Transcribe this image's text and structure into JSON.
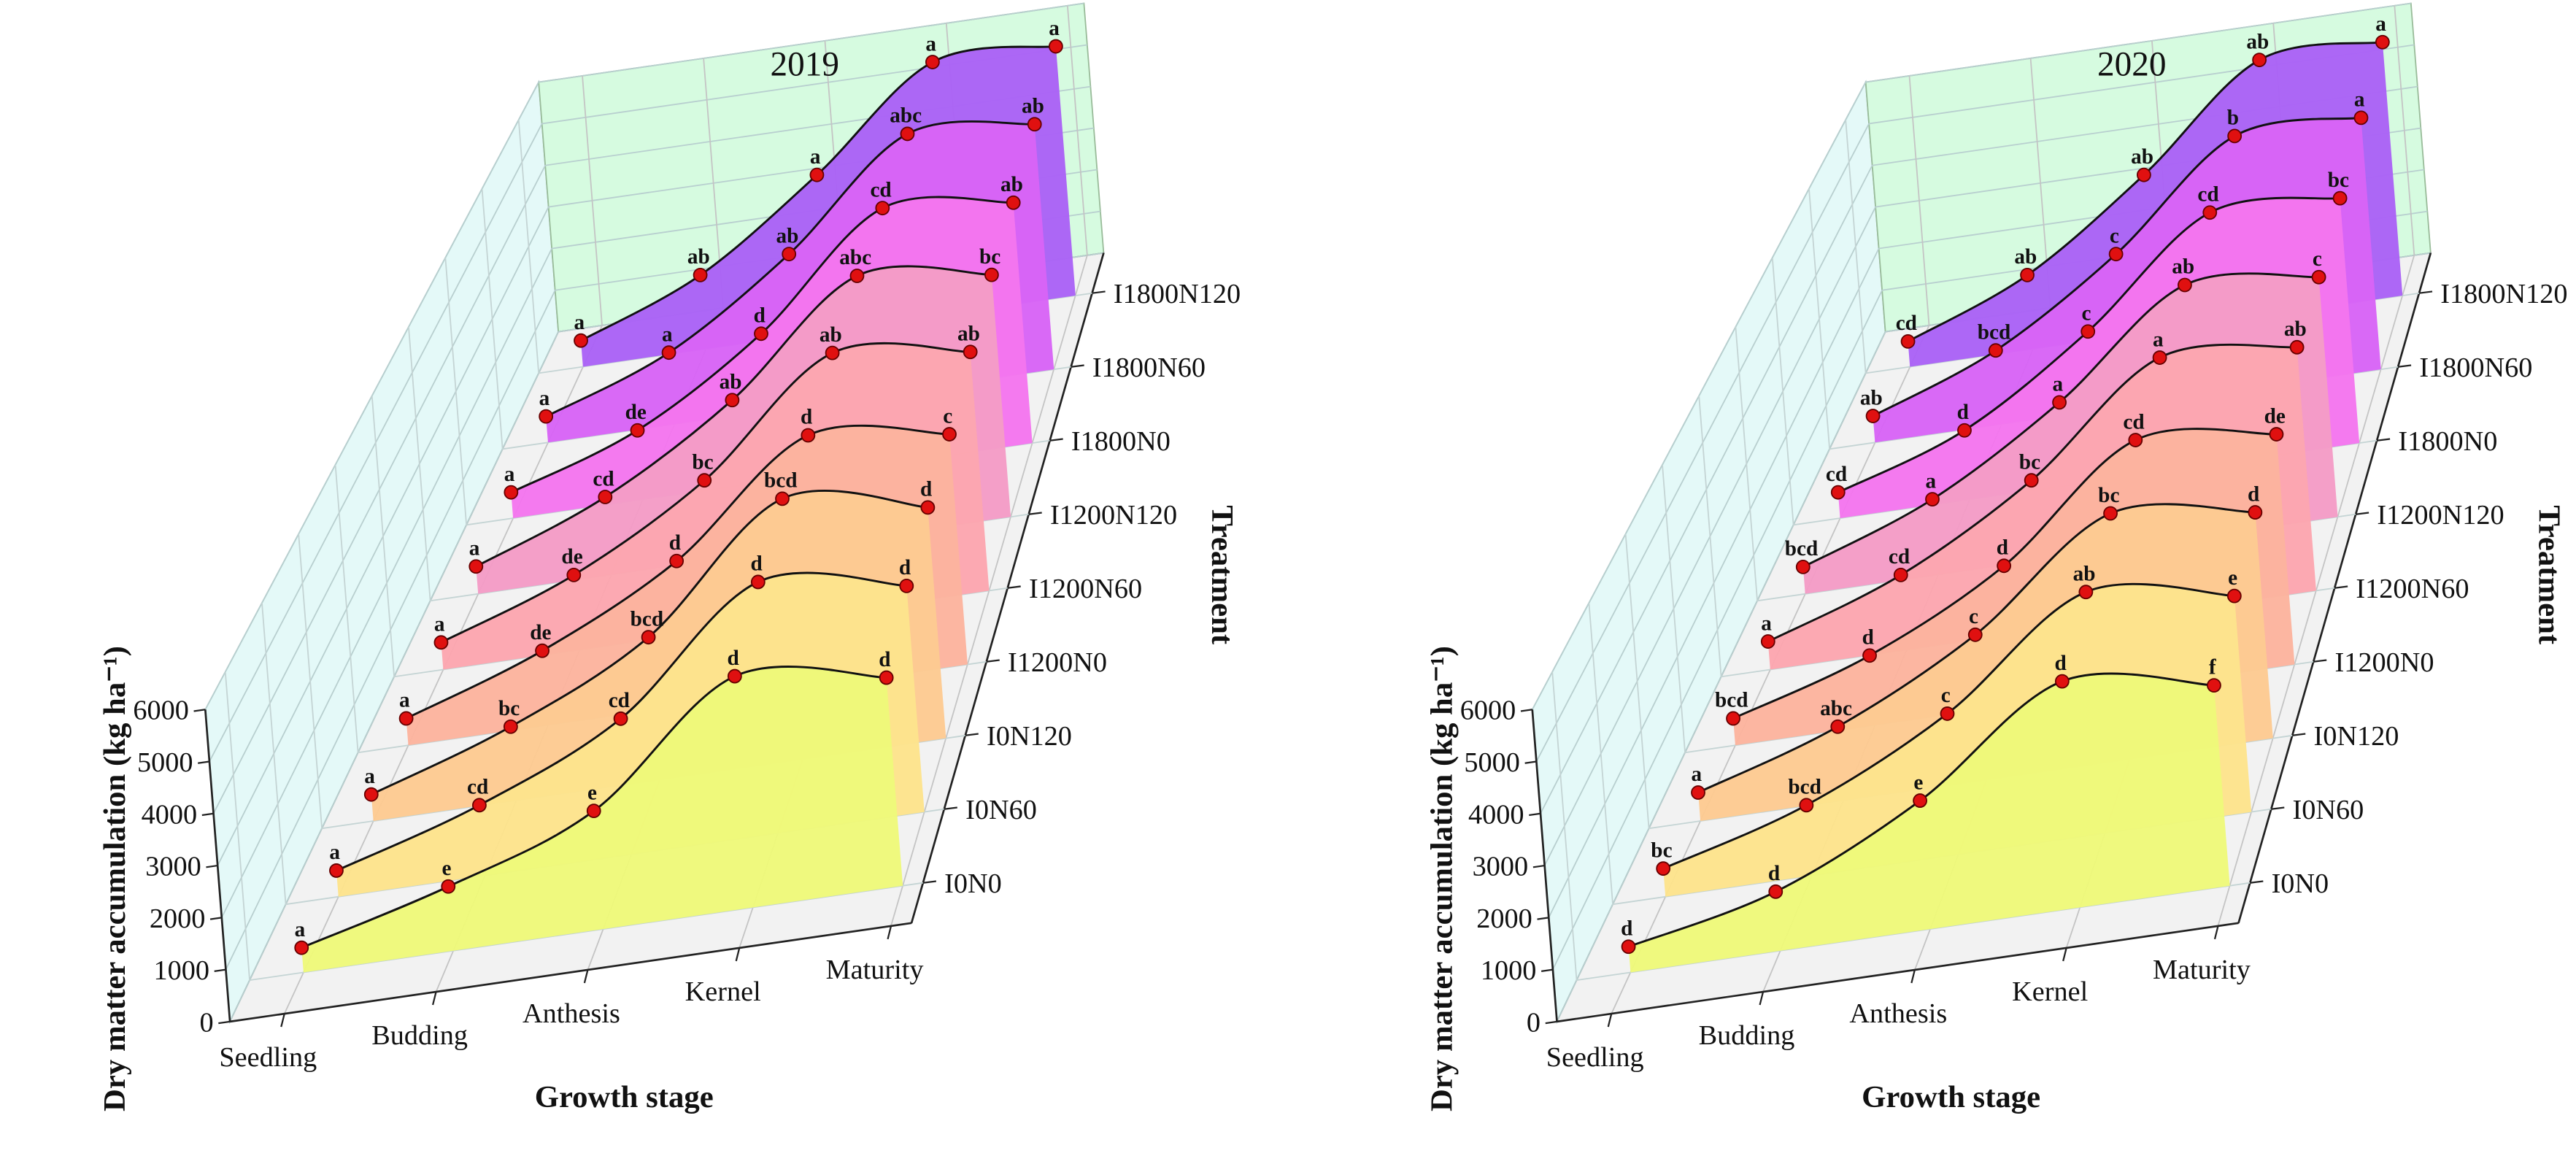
{
  "chart_data": [
    {
      "type": "ribbon3d",
      "title": "2019",
      "xlabel": "Growth stage",
      "ylabel": "Treatment",
      "zlabel": "Dry matter accumulation (kg ha⁻¹)",
      "categories": [
        "Seedling",
        "Budding",
        "Anthesis",
        "Kernel",
        "Maturity"
      ],
      "zlim": [
        0,
        6000
      ],
      "zticks": [
        0,
        1000,
        2000,
        3000,
        4000,
        5000,
        6000
      ],
      "series": [
        {
          "name": "I0N0",
          "color": "#eef97a",
          "values": [
            480,
            1250,
            2300,
            4500,
            4050
          ],
          "letters": [
            "a",
            "e",
            "e",
            "d",
            "d"
          ]
        },
        {
          "name": "I0N60",
          "color": "#fde38c",
          "values": [
            520,
            1400,
            2700,
            5000,
            4500
          ],
          "letters": [
            "a",
            "cd",
            "cd",
            "d",
            "d"
          ]
        },
        {
          "name": "I0N120",
          "color": "#fdca92",
          "values": [
            540,
            1500,
            2900,
            5300,
            4700
          ],
          "letters": [
            "a",
            "bc",
            "bcd",
            "bcd",
            "d"
          ]
        },
        {
          "name": "I1200N0",
          "color": "#fcb49e",
          "values": [
            560,
            1550,
            3000,
            5200,
            4800
          ],
          "letters": [
            "a",
            "de",
            "d",
            "d",
            "c"
          ]
        },
        {
          "name": "I1200N60",
          "color": "#fca6b0",
          "values": [
            580,
            1600,
            3200,
            5500,
            5100
          ],
          "letters": [
            "a",
            "de",
            "bc",
            "ab",
            "ab"
          ]
        },
        {
          "name": "I1200N120",
          "color": "#f49cc6",
          "values": [
            600,
            1700,
            3400,
            5700,
            5300
          ],
          "letters": [
            "a",
            "cd",
            "ab",
            "abc",
            "bc"
          ]
        },
        {
          "name": "I1800N0",
          "color": "#f476ee",
          "values": [
            580,
            1550,
            3300,
            5700,
            5400
          ],
          "letters": [
            "a",
            "de",
            "d",
            "cd",
            "ab"
          ]
        },
        {
          "name": "I1800N60",
          "color": "#d864f6",
          "values": [
            600,
            1650,
            3500,
            5850,
            5650
          ],
          "letters": [
            "a",
            "a",
            "ab",
            "abc",
            "ab"
          ]
        },
        {
          "name": "I1800N120",
          "color": "#aa62f6",
          "values": [
            620,
            1750,
            3700,
            5950,
            5900
          ],
          "letters": [
            "a",
            "ab",
            "a",
            "a",
            "a"
          ]
        }
      ]
    },
    {
      "type": "ribbon3d",
      "title": "2020",
      "xlabel": "Growth stage",
      "ylabel": "Treatment",
      "zlabel": "Dry matter accumulation (kg ha⁻¹)",
      "categories": [
        "Seedling",
        "Budding",
        "Anthesis",
        "Kernel",
        "Maturity"
      ],
      "zlim": [
        0,
        6000
      ],
      "zticks": [
        0,
        1000,
        2000,
        3000,
        4000,
        5000,
        6000
      ],
      "series": [
        {
          "name": "I0N0",
          "color": "#eef97a",
          "values": [
            500,
            1150,
            2500,
            4400,
            3900
          ],
          "letters": [
            "d",
            "d",
            "e",
            "d",
            "f"
          ]
        },
        {
          "name": "I0N60",
          "color": "#fde38c",
          "values": [
            560,
            1400,
            2800,
            4800,
            4300
          ],
          "letters": [
            "bc",
            "bcd",
            "c",
            "ab",
            "e"
          ]
        },
        {
          "name": "I0N120",
          "color": "#fdca92",
          "values": [
            580,
            1500,
            2950,
            5000,
            4600
          ],
          "letters": [
            "a",
            "abc",
            "c",
            "bc",
            "d"
          ]
        },
        {
          "name": "I1200N0",
          "color": "#fcb49e",
          "values": [
            560,
            1450,
            2900,
            5100,
            4800
          ],
          "letters": [
            "bcd",
            "d",
            "d",
            "cd",
            "de"
          ]
        },
        {
          "name": "I1200N60",
          "color": "#fca6b0",
          "values": [
            600,
            1600,
            3200,
            5400,
            5200
          ],
          "letters": [
            "a",
            "cd",
            "bc",
            "a",
            "ab"
          ]
        },
        {
          "name": "I1200N120",
          "color": "#f49cc6",
          "values": [
            590,
            1650,
            3350,
            5500,
            5250
          ],
          "letters": [
            "bcd",
            "a",
            "a",
            "ab",
            "c"
          ]
        },
        {
          "name": "I1800N0",
          "color": "#f476ee",
          "values": [
            580,
            1550,
            3350,
            5600,
            5500
          ],
          "letters": [
            "cd",
            "d",
            "c",
            "cd",
            "bc"
          ]
        },
        {
          "name": "I1800N60",
          "color": "#d864f6",
          "values": [
            610,
            1700,
            3500,
            5800,
            5800
          ],
          "letters": [
            "ab",
            "bcd",
            "c",
            "b",
            "a"
          ]
        },
        {
          "name": "I1800N120",
          "color": "#aa62f6",
          "values": [
            600,
            1750,
            3700,
            6000,
            6000
          ],
          "letters": [
            "cd",
            "ab",
            "ab",
            "ab",
            "a"
          ]
        }
      ]
    }
  ]
}
